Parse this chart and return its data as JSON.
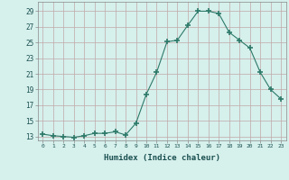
{
  "x": [
    0,
    1,
    2,
    3,
    4,
    5,
    6,
    7,
    8,
    9,
    10,
    11,
    12,
    13,
    14,
    15,
    16,
    17,
    18,
    19,
    20,
    21,
    22,
    23
  ],
  "y": [
    13.3,
    13.1,
    13.0,
    12.9,
    13.1,
    13.4,
    13.4,
    13.6,
    13.2,
    14.7,
    18.4,
    21.2,
    25.1,
    25.3,
    27.2,
    29.0,
    29.0,
    28.7,
    26.3,
    25.3,
    24.3,
    21.2,
    19.0,
    17.8
  ],
  "line_color": "#2d7a6a",
  "marker": "+",
  "marker_size": 4,
  "marker_lw": 1.2,
  "bg_color": "#d6f0ec",
  "grid_color": "#c0a8a8",
  "xlabel": "Humidex (Indice chaleur)",
  "ylabel_ticks": [
    13,
    15,
    17,
    19,
    21,
    23,
    25,
    27,
    29
  ],
  "xlim": [
    -0.5,
    23.5
  ],
  "ylim": [
    12.5,
    30.2
  ],
  "title": ""
}
